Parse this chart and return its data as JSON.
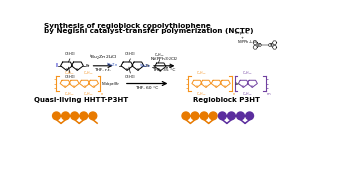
{
  "title_line1": "Synthesis of regioblock copolythiophene",
  "title_line2": "by Negishi catalyst-transfer polymerization (NCTP)",
  "bg_color": "#ffffff",
  "orange_color": "#F5921E",
  "purple_color": "#7040A0",
  "dark_orange": "#E87A00",
  "dark_purple": "#5B2D9E",
  "black": "#000000",
  "blue_i": "#3333CC",
  "blue_zn": "#3355BB",
  "label_quasi": "Quasi-living HHTT-P3HT",
  "label_regio": "Regioblock P3HT",
  "font_title": 5.2,
  "font_label": 5.0,
  "font_small": 3.0,
  "font_reagent": 3.2,
  "font_struct": 2.6
}
